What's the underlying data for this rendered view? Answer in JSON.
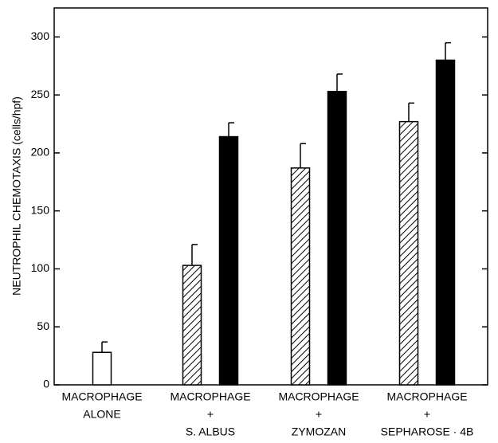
{
  "chart_data": {
    "type": "bar",
    "y_label": "NEUTROPHIL CHEMOTAXIS (cells/hpf)",
    "categories": [
      [
        "MACROPHAGE",
        "ALONE"
      ],
      [
        "MACROPHAGE",
        "+",
        "S. ALBUS"
      ],
      [
        "MACROPHAGE",
        "+",
        "ZYMOZAN"
      ],
      [
        "MACROPHAGE",
        "+",
        "SEPHAROSE · 4B"
      ]
    ],
    "series": [
      {
        "color": "#ffffff",
        "values": [
          28,
          null,
          null,
          null
        ],
        "errors": [
          9,
          null,
          null,
          null
        ]
      },
      {
        "color": "#000000",
        "pattern": "hatch",
        "values": [
          null,
          103,
          187,
          227
        ],
        "errors": [
          null,
          18,
          21,
          16
        ]
      },
      {
        "color": "#000000",
        "values": [
          null,
          214,
          253,
          280
        ],
        "errors": [
          null,
          12,
          15,
          15
        ]
      }
    ],
    "ylim": [
      0,
      325
    ],
    "yticks": [
      0,
      50,
      100,
      150,
      200,
      250,
      300
    ]
  }
}
